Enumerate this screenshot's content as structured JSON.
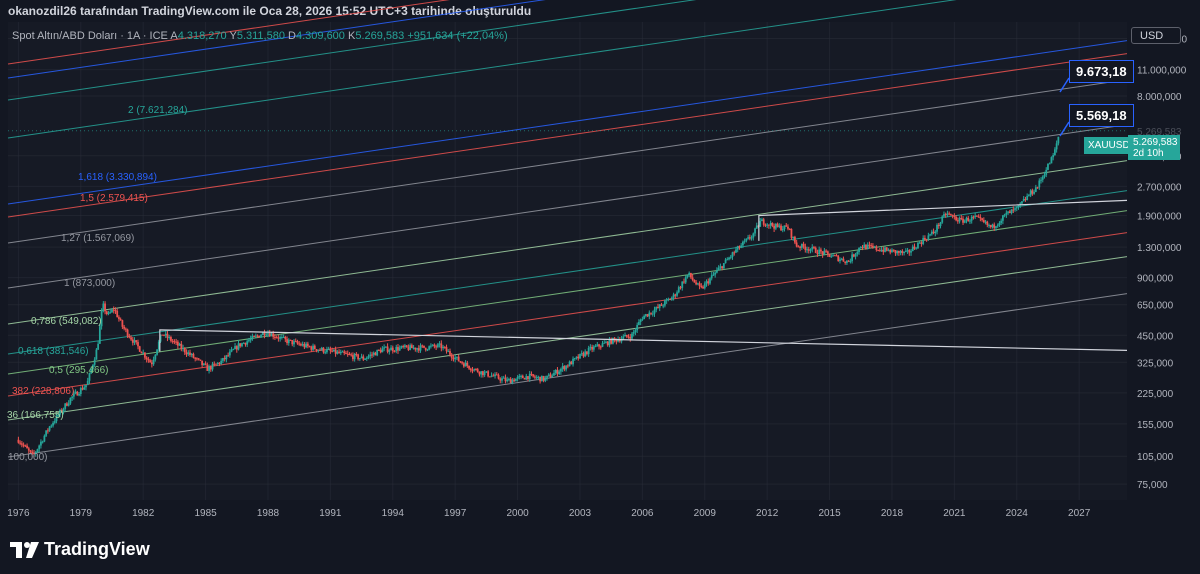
{
  "attribution": "okanozdil26 tarafından TradingView.com ile Oca 28, 2026 15:52 UTC+3 tarihinde oluşturuldu",
  "legend": {
    "symbol": "Spot Altın/ABD Doları · 1A · ICE",
    "o_label": "A",
    "o_value": "4.318,270",
    "h_label": "Y",
    "h_value": "5.311,580",
    "l_label": "D",
    "l_value": "4.309,600",
    "c_label": "K",
    "c_value": "5.269,583",
    "change": "+951,634 (+22,04%)"
  },
  "currency": "USD",
  "targets": [
    "9.673,18",
    "5.569,18"
  ],
  "symbol_tag": "XAUUSD",
  "price_tag": {
    "price": "5.269,583",
    "countdown": "2d 10h"
  },
  "brand": "TradingView",
  "colors": {
    "up": "#26a69a",
    "down": "#ef5350",
    "bg": "#161a25",
    "grid": "#2a2e39"
  },
  "chart_data": {
    "type": "candlestick",
    "instrument": "XAUUSD",
    "scale": "log",
    "ylim": [
      62,
      19500
    ],
    "xlim": [
      1975.5,
      2029.3
    ],
    "x_ticks": [
      "1976",
      "1979",
      "1982",
      "1985",
      "1988",
      "1991",
      "1994",
      "1997",
      "2000",
      "2003",
      "2006",
      "2009",
      "2012",
      "2015",
      "2018",
      "2021",
      "2024",
      "2027"
    ],
    "y_ticks": [
      "16.000,000",
      "11.000,000",
      "8.000,000",
      "5.269,583",
      "3.900,000",
      "2.700,000",
      "1.900,000",
      "1.300,000",
      "900,000",
      "650,000",
      "450,000",
      "325,000",
      "225,000",
      "155,000",
      "105,000",
      "75,000"
    ],
    "price_path": [
      [
        1976.0,
        128
      ],
      [
        1976.7,
        105
      ],
      [
        1977.5,
        150
      ],
      [
        1978.5,
        210
      ],
      [
        1979.3,
        250
      ],
      [
        1979.8,
        390
      ],
      [
        1980.05,
        650
      ],
      [
        1980.3,
        570
      ],
      [
        1980.6,
        620
      ],
      [
        1981.0,
        500
      ],
      [
        1981.6,
        410
      ],
      [
        1982.4,
        320
      ],
      [
        1982.9,
        460
      ],
      [
        1983.4,
        420
      ],
      [
        1984.2,
        360
      ],
      [
        1985.1,
        300
      ],
      [
        1985.8,
        330
      ],
      [
        1986.6,
        400
      ],
      [
        1987.4,
        440
      ],
      [
        1987.9,
        470
      ],
      [
        1988.9,
        420
      ],
      [
        1990.0,
        390
      ],
      [
        1991.0,
        370
      ],
      [
        1992.6,
        340
      ],
      [
        1993.5,
        380
      ],
      [
        1994.5,
        385
      ],
      [
        1995.5,
        388
      ],
      [
        1996.3,
        395
      ],
      [
        1997.2,
        330
      ],
      [
        1998.0,
        295
      ],
      [
        1999.5,
        260
      ],
      [
        2000.5,
        275
      ],
      [
        2001.3,
        265
      ],
      [
        2002.5,
        320
      ],
      [
        2003.5,
        380
      ],
      [
        2004.5,
        420
      ],
      [
        2005.5,
        450
      ],
      [
        2006.0,
        560
      ],
      [
        2006.7,
        620
      ],
      [
        2007.5,
        720
      ],
      [
        2008.2,
        940
      ],
      [
        2008.8,
        780
      ],
      [
        2009.5,
        950
      ],
      [
        2010.5,
        1250
      ],
      [
        2011.3,
        1500
      ],
      [
        2011.7,
        1780
      ],
      [
        2012.5,
        1650
      ],
      [
        2013.0,
        1640
      ],
      [
        2013.4,
        1330
      ],
      [
        2014.0,
        1280
      ],
      [
        2014.8,
        1200
      ],
      [
        2015.9,
        1090
      ],
      [
        2016.5,
        1320
      ],
      [
        2017.5,
        1260
      ],
      [
        2018.7,
        1200
      ],
      [
        2019.5,
        1420
      ],
      [
        2020.0,
        1550
      ],
      [
        2020.6,
        1950
      ],
      [
        2021.3,
        1780
      ],
      [
        2022.0,
        1850
      ],
      [
        2022.8,
        1640
      ],
      [
        2023.5,
        1930
      ],
      [
        2024.0,
        2050
      ],
      [
        2024.6,
        2450
      ],
      [
        2025.0,
        2700
      ],
      [
        2025.4,
        3300
      ],
      [
        2025.8,
        4000
      ],
      [
        2026.07,
        5269.583
      ]
    ],
    "fib_levels": [
      {
        "label": "2 (7.621,284)",
        "color": "#26a69a"
      },
      {
        "label": "1,618 (3.330,894)",
        "color": "#2962ff"
      },
      {
        "label": "1,5 (2.579,415)",
        "color": "#ef5350"
      },
      {
        "label": "1,27 (1.567,069)",
        "color": "#9598a1"
      },
      {
        "label": "1 (873,000)",
        "color": "#9598a1"
      },
      {
        "label": "0,786 (549,082)",
        "color": "#a5d6a7"
      },
      {
        "label": "0,618 (381,546)",
        "color": "#26a69a"
      },
      {
        "label": "0,5 (295,466)",
        "color": "#81c784"
      },
      {
        "label": "382 (228,806)",
        "color": "#ef5350"
      },
      {
        "label": "36 (166,755)",
        "color": "#a5d6a7"
      },
      {
        "label": "100,000)",
        "color": "#9598a1"
      }
    ]
  }
}
